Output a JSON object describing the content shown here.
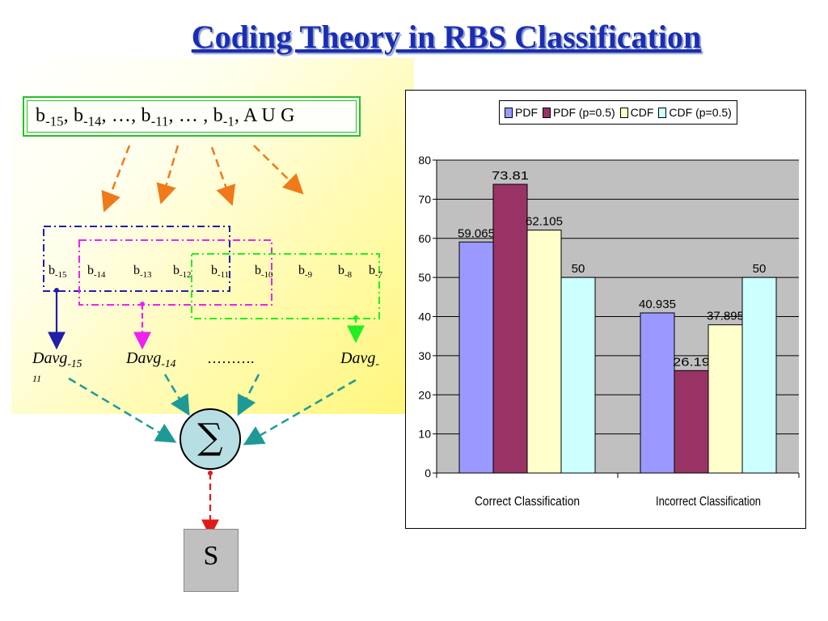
{
  "title": "Coding Theory in RBS Classification",
  "sequence": {
    "parts": [
      "b",
      "-15",
      ", b",
      "-14",
      ", …, b",
      "-11",
      ", … , b",
      "-1",
      ",  A  U  G"
    ]
  },
  "bits": [
    {
      "base": "b",
      "sub": "-15"
    },
    {
      "base": "b",
      "sub": "-14"
    },
    {
      "base": "b",
      "sub": "-13"
    },
    {
      "base": "b",
      "sub": "-12"
    },
    {
      "base": "b",
      "sub": "-11"
    },
    {
      "base": "b",
      "sub": "-10"
    },
    {
      "base": "b",
      "sub": "-9"
    },
    {
      "base": "b",
      "sub": "-8"
    },
    {
      "base": "b",
      "sub": "-7"
    }
  ],
  "davg": [
    {
      "base": "Davg",
      "sub": "-15",
      "sub2": "11"
    },
    {
      "base": "Davg",
      "sub": "-14"
    },
    {
      "base": "………."
    },
    {
      "base": "Davg",
      "sub": "-"
    }
  ],
  "sigma": "∑",
  "output": "S",
  "colors": {
    "title": "#1a2db4",
    "box_blue": "#1f1fa8",
    "box_magenta": "#ee22ee",
    "box_green": "#22ee22",
    "arrow_orange": "#f07a1a",
    "arrow_teal": "#1e9a96",
    "arrow_red": "#e01a1a",
    "sequence_border": "#21c421"
  },
  "chart_data": {
    "type": "bar",
    "categories": [
      "Correct Classification",
      "Incorrect Classification"
    ],
    "series": [
      {
        "name": "PDF",
        "values": [
          59.065,
          40.935
        ],
        "color": "#9999ff"
      },
      {
        "name": "PDF (p=0.5)",
        "values": [
          73.81,
          26.19
        ],
        "color": "#993366"
      },
      {
        "name": "CDF",
        "values": [
          62.105,
          37.895
        ],
        "color": "#ffffcc"
      },
      {
        "name": "CDF (p=0.5)",
        "values": [
          50,
          50
        ],
        "color": "#ccffff"
      }
    ],
    "data_labels": [
      [
        "59.065",
        "40.935"
      ],
      [
        "73.81",
        "26.19"
      ],
      [
        "62.105",
        "37.895"
      ],
      [
        "50",
        "50"
      ]
    ],
    "ylim": [
      0,
      80
    ],
    "yticks": [
      "0",
      "10",
      "20",
      "30",
      "40",
      "50",
      "60",
      "70",
      "80"
    ],
    "grid": true,
    "plot_background": "#c0c0c0",
    "legend_position": "top"
  }
}
